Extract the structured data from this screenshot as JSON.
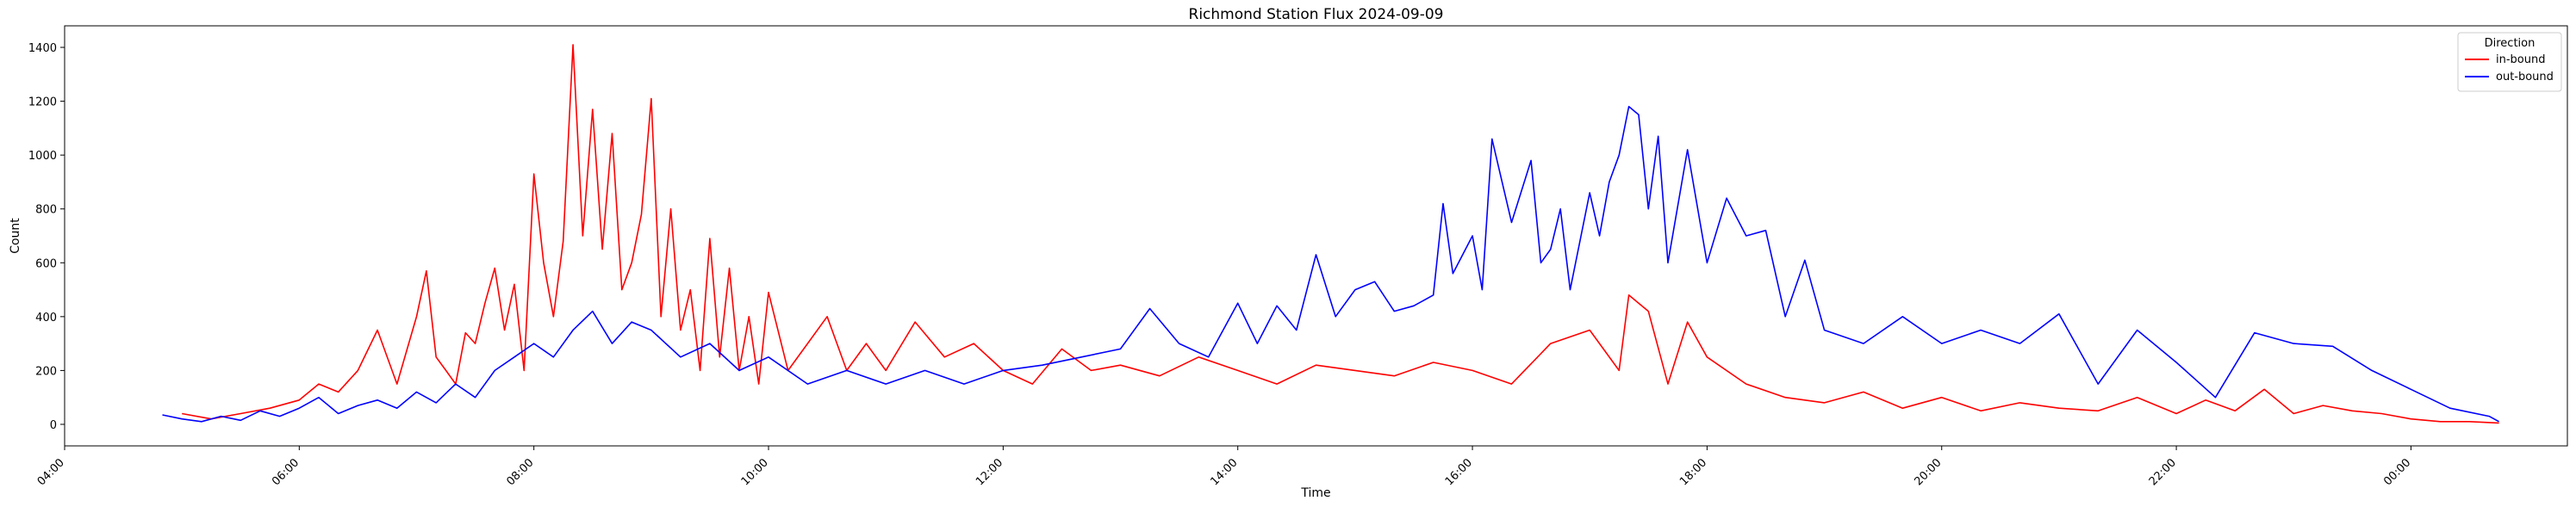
{
  "chart_data": {
    "type": "line",
    "title": "Richmond Station Flux 2024-09-09",
    "xlabel": "Time",
    "ylabel": "Count",
    "xlim": [
      "04:00",
      "25:20"
    ],
    "ylim": [
      -80,
      1480
    ],
    "x_ticks": [
      "04:00",
      "06:00",
      "08:00",
      "10:00",
      "12:00",
      "14:00",
      "16:00",
      "18:00",
      "20:00",
      "22:00",
      "00:00"
    ],
    "y_ticks": [
      0,
      200,
      400,
      600,
      800,
      1000,
      1200,
      1400
    ],
    "grid": false,
    "legend": {
      "title": "Direction",
      "placement": "top-right"
    },
    "series": [
      {
        "name": "in-bound",
        "color": "#ff0000",
        "points": [
          [
            "05:00",
            40
          ],
          [
            "05:15",
            20
          ],
          [
            "05:30",
            40
          ],
          [
            "05:45",
            60
          ],
          [
            "06:00",
            90
          ],
          [
            "06:10",
            150
          ],
          [
            "06:20",
            120
          ],
          [
            "06:30",
            200
          ],
          [
            "06:40",
            350
          ],
          [
            "06:50",
            150
          ],
          [
            "07:00",
            400
          ],
          [
            "07:05",
            570
          ],
          [
            "07:10",
            250
          ],
          [
            "07:15",
            200
          ],
          [
            "07:20",
            150
          ],
          [
            "07:25",
            340
          ],
          [
            "07:30",
            300
          ],
          [
            "07:35",
            450
          ],
          [
            "07:40",
            580
          ],
          [
            "07:45",
            350
          ],
          [
            "07:50",
            520
          ],
          [
            "07:55",
            200
          ],
          [
            "08:00",
            930
          ],
          [
            "08:05",
            600
          ],
          [
            "08:10",
            400
          ],
          [
            "08:15",
            680
          ],
          [
            "08:20",
            1410
          ],
          [
            "08:25",
            700
          ],
          [
            "08:30",
            1170
          ],
          [
            "08:35",
            650
          ],
          [
            "08:40",
            1080
          ],
          [
            "08:45",
            500
          ],
          [
            "08:50",
            600
          ],
          [
            "08:55",
            780
          ],
          [
            "09:00",
            1210
          ],
          [
            "09:05",
            400
          ],
          [
            "09:10",
            800
          ],
          [
            "09:15",
            350
          ],
          [
            "09:20",
            500
          ],
          [
            "09:25",
            200
          ],
          [
            "09:30",
            690
          ],
          [
            "09:35",
            250
          ],
          [
            "09:40",
            580
          ],
          [
            "09:45",
            200
          ],
          [
            "09:50",
            400
          ],
          [
            "09:55",
            150
          ],
          [
            "10:00",
            490
          ],
          [
            "10:10",
            200
          ],
          [
            "10:20",
            300
          ],
          [
            "10:30",
            400
          ],
          [
            "10:40",
            200
          ],
          [
            "10:50",
            300
          ],
          [
            "11:00",
            200
          ],
          [
            "11:15",
            380
          ],
          [
            "11:30",
            250
          ],
          [
            "11:45",
            300
          ],
          [
            "12:00",
            200
          ],
          [
            "12:15",
            150
          ],
          [
            "12:30",
            280
          ],
          [
            "12:45",
            200
          ],
          [
            "13:00",
            220
          ],
          [
            "13:20",
            180
          ],
          [
            "13:40",
            250
          ],
          [
            "14:00",
            200
          ],
          [
            "14:20",
            150
          ],
          [
            "14:40",
            220
          ],
          [
            "15:00",
            200
          ],
          [
            "15:20",
            180
          ],
          [
            "15:40",
            230
          ],
          [
            "16:00",
            200
          ],
          [
            "16:20",
            150
          ],
          [
            "16:40",
            300
          ],
          [
            "17:00",
            350
          ],
          [
            "17:15",
            200
          ],
          [
            "17:20",
            480
          ],
          [
            "17:30",
            420
          ],
          [
            "17:40",
            150
          ],
          [
            "17:50",
            380
          ],
          [
            "18:00",
            250
          ],
          [
            "18:20",
            150
          ],
          [
            "18:40",
            100
          ],
          [
            "19:00",
            80
          ],
          [
            "19:20",
            120
          ],
          [
            "19:40",
            60
          ],
          [
            "20:00",
            100
          ],
          [
            "20:20",
            50
          ],
          [
            "20:40",
            80
          ],
          [
            "21:00",
            60
          ],
          [
            "21:20",
            50
          ],
          [
            "21:40",
            100
          ],
          [
            "22:00",
            40
          ],
          [
            "22:15",
            90
          ],
          [
            "22:30",
            50
          ],
          [
            "22:45",
            130
          ],
          [
            "23:00",
            40
          ],
          [
            "23:15",
            70
          ],
          [
            "23:30",
            50
          ],
          [
            "23:45",
            40
          ],
          [
            "24:00",
            20
          ],
          [
            "24:15",
            10
          ],
          [
            "24:30",
            10
          ],
          [
            "24:45",
            5
          ]
        ]
      },
      {
        "name": "out-bound",
        "color": "#0000ff",
        "points": [
          [
            "04:50",
            35
          ],
          [
            "05:00",
            20
          ],
          [
            "05:10",
            10
          ],
          [
            "05:20",
            30
          ],
          [
            "05:30",
            15
          ],
          [
            "05:40",
            50
          ],
          [
            "05:50",
            30
          ],
          [
            "06:00",
            60
          ],
          [
            "06:10",
            100
          ],
          [
            "06:20",
            40
          ],
          [
            "06:30",
            70
          ],
          [
            "06:40",
            90
          ],
          [
            "06:50",
            60
          ],
          [
            "07:00",
            120
          ],
          [
            "07:10",
            80
          ],
          [
            "07:20",
            150
          ],
          [
            "07:30",
            100
          ],
          [
            "07:40",
            200
          ],
          [
            "07:50",
            250
          ],
          [
            "08:00",
            300
          ],
          [
            "08:10",
            250
          ],
          [
            "08:20",
            350
          ],
          [
            "08:30",
            420
          ],
          [
            "08:40",
            300
          ],
          [
            "08:50",
            380
          ],
          [
            "09:00",
            350
          ],
          [
            "09:15",
            250
          ],
          [
            "09:30",
            300
          ],
          [
            "09:45",
            200
          ],
          [
            "10:00",
            250
          ],
          [
            "10:20",
            150
          ],
          [
            "10:40",
            200
          ],
          [
            "11:00",
            150
          ],
          [
            "11:20",
            200
          ],
          [
            "11:40",
            150
          ],
          [
            "12:00",
            200
          ],
          [
            "12:20",
            220
          ],
          [
            "12:40",
            250
          ],
          [
            "13:00",
            280
          ],
          [
            "13:15",
            430
          ],
          [
            "13:30",
            300
          ],
          [
            "13:45",
            250
          ],
          [
            "14:00",
            450
          ],
          [
            "14:10",
            300
          ],
          [
            "14:20",
            440
          ],
          [
            "14:30",
            350
          ],
          [
            "14:40",
            630
          ],
          [
            "14:50",
            400
          ],
          [
            "15:00",
            500
          ],
          [
            "15:10",
            530
          ],
          [
            "15:20",
            420
          ],
          [
            "15:30",
            440
          ],
          [
            "15:40",
            480
          ],
          [
            "15:45",
            820
          ],
          [
            "15:50",
            560
          ],
          [
            "16:00",
            700
          ],
          [
            "16:05",
            500
          ],
          [
            "16:10",
            1060
          ],
          [
            "16:20",
            750
          ],
          [
            "16:30",
            980
          ],
          [
            "16:35",
            600
          ],
          [
            "16:40",
            650
          ],
          [
            "16:45",
            800
          ],
          [
            "16:50",
            500
          ],
          [
            "17:00",
            860
          ],
          [
            "17:05",
            700
          ],
          [
            "17:10",
            900
          ],
          [
            "17:15",
            1000
          ],
          [
            "17:20",
            1180
          ],
          [
            "17:25",
            1150
          ],
          [
            "17:30",
            800
          ],
          [
            "17:35",
            1070
          ],
          [
            "17:40",
            600
          ],
          [
            "17:50",
            1020
          ],
          [
            "18:00",
            600
          ],
          [
            "18:10",
            840
          ],
          [
            "18:20",
            700
          ],
          [
            "18:30",
            720
          ],
          [
            "18:40",
            400
          ],
          [
            "18:50",
            610
          ],
          [
            "19:00",
            350
          ],
          [
            "19:20",
            300
          ],
          [
            "19:40",
            400
          ],
          [
            "20:00",
            300
          ],
          [
            "20:20",
            350
          ],
          [
            "20:40",
            300
          ],
          [
            "21:00",
            410
          ],
          [
            "21:20",
            150
          ],
          [
            "21:40",
            350
          ],
          [
            "22:00",
            230
          ],
          [
            "22:20",
            100
          ],
          [
            "22:40",
            340
          ],
          [
            "23:00",
            300
          ],
          [
            "23:20",
            290
          ],
          [
            "23:40",
            200
          ],
          [
            "24:00",
            130
          ],
          [
            "24:20",
            60
          ],
          [
            "24:40",
            30
          ],
          [
            "24:45",
            10
          ]
        ]
      }
    ]
  }
}
